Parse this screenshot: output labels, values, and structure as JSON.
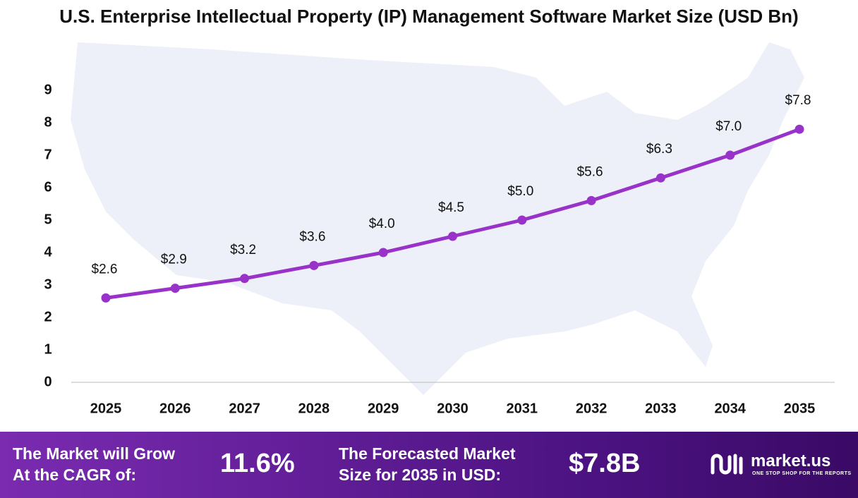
{
  "chart_data": {
    "type": "line",
    "title": "U.S. Enterprise Intellectual Property (IP) Management Software Market Size (USD Bn)",
    "categories": [
      "2025",
      "2026",
      "2027",
      "2028",
      "2029",
      "2030",
      "2031",
      "2032",
      "2033",
      "2034",
      "2035"
    ],
    "values": [
      2.6,
      2.9,
      3.2,
      3.6,
      4.0,
      4.5,
      5.0,
      5.6,
      6.3,
      7.0,
      7.8
    ],
    "value_labels": [
      "$2.6",
      "$2.9",
      "$3.2",
      "$3.6",
      "$4.0",
      "$4.5",
      "$5.0",
      "$5.6",
      "$6.3",
      "$7.0",
      "$7.8"
    ],
    "color": "#9932c8",
    "ylim": [
      0,
      9
    ],
    "yticks": [
      0,
      1,
      2,
      3,
      4,
      5,
      6,
      7,
      8,
      9
    ],
    "grid": false
  },
  "footer": {
    "cagr_text": [
      "The Market will Grow",
      "At the CAGR of:"
    ],
    "cagr_value": "11.6%",
    "forecast_text": [
      "The Forecasted Market",
      "Size for 2035 in USD:"
    ],
    "forecast_value": "$7.8B",
    "brand": "market.us",
    "tagline": "ONE STOP SHOP FOR THE REPORTS"
  }
}
